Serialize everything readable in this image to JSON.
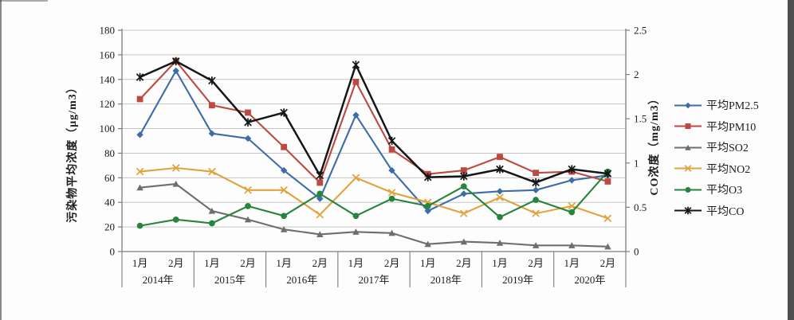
{
  "frame": {
    "background": "#fdfdfd",
    "right_strip_color": "#4f4f4f",
    "grid_color": "#c6c6c6",
    "axis_color": "#7d7d7d",
    "text_color": "#1c1c1c"
  },
  "chart_data": {
    "type": "line",
    "title": "",
    "years": [
      "2014年",
      "2015年",
      "2016年",
      "2017年",
      "2018年",
      "2019年",
      "2020年"
    ],
    "months": [
      "1月",
      "2月"
    ],
    "ylabel": "污染物平均浓度（μg/m3）",
    "y2label": "CO浓度（mg/m3）",
    "ylim": [
      0,
      180
    ],
    "ytick_step": 20,
    "y2lim": [
      0,
      2.5
    ],
    "y2tick_step": 0.5,
    "grid": true,
    "legend_position": "right",
    "series": [
      {
        "key": "pm2-5",
        "name": "平均PM2.5",
        "axis": "left",
        "color": "#3C6DA8",
        "marker": "diamond",
        "values": [
          95,
          147,
          96,
          92,
          66,
          43,
          111,
          66,
          33,
          47,
          49,
          50,
          58,
          62
        ]
      },
      {
        "key": "pm10",
        "name": "平均PM10",
        "axis": "left",
        "color": "#BC4A41",
        "marker": "square",
        "values": [
          124,
          155,
          119,
          113,
          85,
          56,
          138,
          83,
          63,
          66,
          77,
          64,
          65,
          57
        ]
      },
      {
        "key": "so2",
        "name": "平均SO2",
        "axis": "left",
        "color": "#6E6E6E",
        "marker": "triangle",
        "values": [
          52,
          55,
          33,
          26,
          18,
          14,
          16,
          15,
          6,
          8,
          7,
          5,
          5,
          4
        ]
      },
      {
        "key": "no2",
        "name": "平均NO2",
        "axis": "left",
        "color": "#E1A23D",
        "marker": "x",
        "values": [
          65,
          68,
          65,
          50,
          50,
          30,
          60,
          48,
          40,
          31,
          44,
          31,
          37,
          27
        ]
      },
      {
        "key": "o3",
        "name": "平均O3",
        "axis": "left",
        "color": "#27843C",
        "marker": "circle",
        "values": [
          21,
          26,
          23,
          37,
          29,
          47,
          29,
          43,
          37,
          53,
          28,
          42,
          32,
          65
        ]
      },
      {
        "key": "co",
        "name": "平均CO",
        "axis": "right",
        "color": "#161616",
        "marker": "asterisk",
        "values": [
          1.97,
          2.15,
          1.93,
          1.46,
          1.57,
          0.86,
          2.11,
          1.25,
          0.84,
          0.85,
          0.93,
          0.78,
          0.93,
          0.88
        ]
      }
    ]
  }
}
